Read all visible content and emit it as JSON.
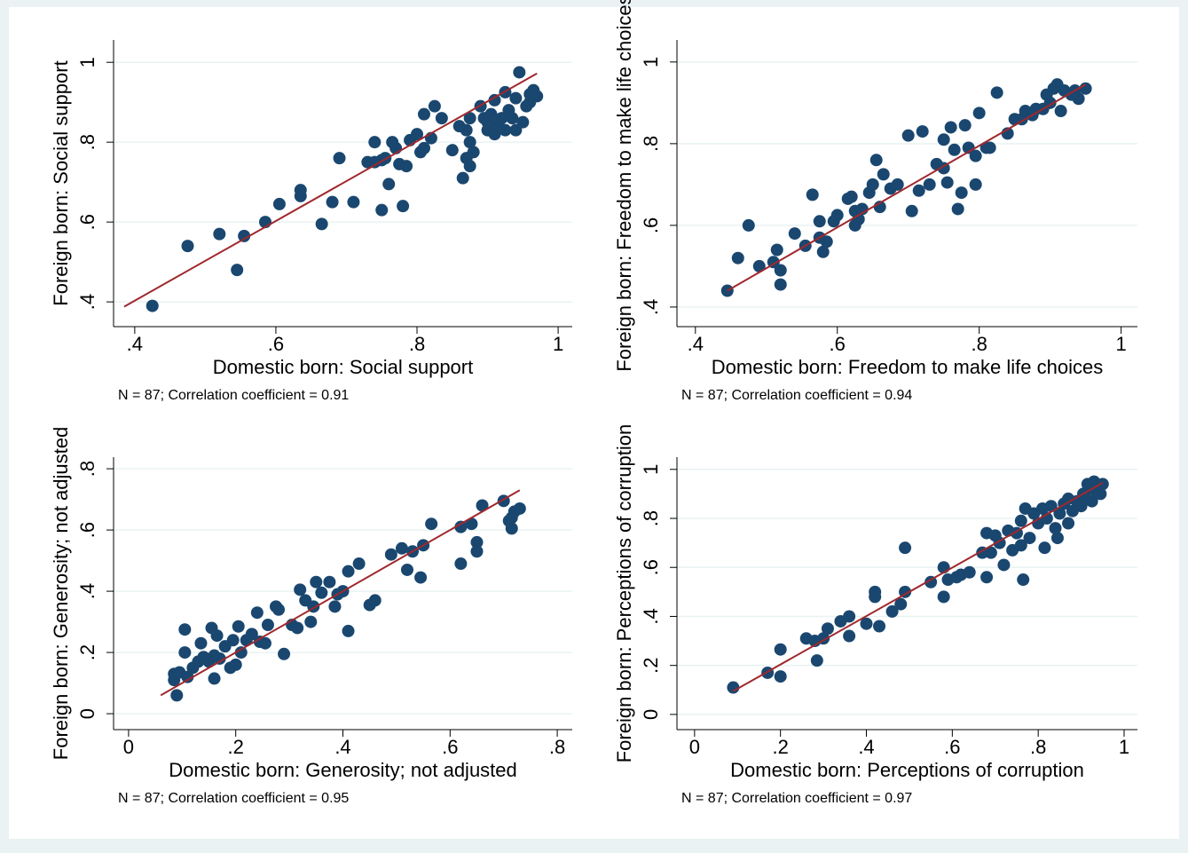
{
  "chart_data": [
    {
      "type": "scatter",
      "xlabel": "Domestic born: Social support",
      "ylabel": "Foreign born: Social support",
      "note": "N = 87; Correlation coefficient =  0.91",
      "color": "#1a476f",
      "grid": true,
      "xlim": [
        0.37,
        1.02
      ],
      "ylim": [
        0.338,
        1.056
      ],
      "xticks": [
        {
          "value": 0.4,
          "label": ".4"
        },
        {
          "value": 0.6,
          "label": ".6"
        },
        {
          "value": 0.8,
          "label": ".8"
        },
        1
      ],
      "yticks": [
        {
          "value": 0.4,
          "label": ".4"
        },
        {
          "value": 0.6,
          "label": ".6"
        },
        {
          "value": 0.8,
          "label": ".8"
        },
        1
      ],
      "x": [
        0.425,
        0.475,
        0.52,
        0.545,
        0.555,
        0.585,
        0.605,
        0.635,
        0.635,
        0.665,
        0.68,
        0.69,
        0.71,
        0.73,
        0.74,
        0.74,
        0.75,
        0.75,
        0.755,
        0.76,
        0.765,
        0.77,
        0.775,
        0.78,
        0.785,
        0.79,
        0.8,
        0.805,
        0.81,
        0.81,
        0.82,
        0.825,
        0.835,
        0.85,
        0.86,
        0.865,
        0.87,
        0.87,
        0.875,
        0.875,
        0.875,
        0.88,
        0.89,
        0.895,
        0.9,
        0.9,
        0.905,
        0.91,
        0.91,
        0.915,
        0.92,
        0.925,
        0.925,
        0.93,
        0.935,
        0.94,
        0.94,
        0.945,
        0.95,
        0.955,
        0.96,
        0.96,
        0.965,
        0.97
      ],
      "values": [
        0.39,
        0.54,
        0.57,
        0.48,
        0.565,
        0.6,
        0.645,
        0.68,
        0.665,
        0.595,
        0.65,
        0.76,
        0.65,
        0.75,
        0.8,
        0.75,
        0.755,
        0.63,
        0.76,
        0.695,
        0.8,
        0.785,
        0.745,
        0.64,
        0.74,
        0.805,
        0.82,
        0.775,
        0.87,
        0.785,
        0.81,
        0.89,
        0.86,
        0.78,
        0.84,
        0.71,
        0.76,
        0.83,
        0.86,
        0.8,
        0.74,
        0.775,
        0.89,
        0.86,
        0.83,
        0.85,
        0.87,
        0.82,
        0.905,
        0.845,
        0.86,
        0.925,
        0.83,
        0.88,
        0.86,
        0.91,
        0.83,
        0.975,
        0.85,
        0.89,
        0.92,
        0.9,
        0.93,
        0.915
      ],
      "fit_line": {
        "x": [
          0.385,
          0.97
        ],
        "values": [
          0.388,
          0.972
        ],
        "color": "#a0282d"
      }
    },
    {
      "type": "scatter",
      "xlabel": "Domestic born: Freedom to make life choices",
      "ylabel": "Foreign born: Freedom to make life choices",
      "note": "N = 87; Correlation coefficient =  0.94",
      "color": "#1a476f",
      "grid": true,
      "xlim": [
        0.374,
        1.023
      ],
      "ylim": [
        0.352,
        1.054
      ],
      "xticks": [
        {
          "value": 0.4,
          "label": ".4"
        },
        {
          "value": 0.6,
          "label": ".6"
        },
        {
          "value": 0.8,
          "label": ".8"
        },
        1
      ],
      "yticks": [
        {
          "value": 0.4,
          "label": ".4"
        },
        {
          "value": 0.6,
          "label": ".6"
        },
        {
          "value": 0.8,
          "label": ".8"
        },
        1
      ],
      "x": [
        0.445,
        0.46,
        0.475,
        0.49,
        0.51,
        0.515,
        0.52,
        0.52,
        0.54,
        0.555,
        0.565,
        0.575,
        0.575,
        0.58,
        0.585,
        0.595,
        0.6,
        0.615,
        0.62,
        0.625,
        0.625,
        0.63,
        0.635,
        0.645,
        0.65,
        0.655,
        0.66,
        0.665,
        0.675,
        0.685,
        0.7,
        0.705,
        0.715,
        0.72,
        0.73,
        0.74,
        0.75,
        0.75,
        0.755,
        0.76,
        0.765,
        0.77,
        0.775,
        0.78,
        0.785,
        0.795,
        0.795,
        0.8,
        0.81,
        0.815,
        0.825,
        0.84,
        0.85,
        0.86,
        0.865,
        0.875,
        0.88,
        0.89,
        0.895,
        0.9,
        0.905,
        0.91,
        0.915,
        0.92,
        0.93,
        0.935,
        0.94,
        0.95
      ],
      "values": [
        0.44,
        0.52,
        0.6,
        0.5,
        0.51,
        0.54,
        0.49,
        0.455,
        0.58,
        0.55,
        0.675,
        0.61,
        0.57,
        0.535,
        0.56,
        0.61,
        0.625,
        0.665,
        0.67,
        0.635,
        0.6,
        0.615,
        0.64,
        0.68,
        0.7,
        0.76,
        0.645,
        0.725,
        0.69,
        0.7,
        0.82,
        0.635,
        0.685,
        0.83,
        0.7,
        0.75,
        0.74,
        0.81,
        0.705,
        0.84,
        0.785,
        0.64,
        0.68,
        0.845,
        0.79,
        0.77,
        0.7,
        0.875,
        0.79,
        0.79,
        0.925,
        0.825,
        0.86,
        0.86,
        0.88,
        0.87,
        0.885,
        0.885,
        0.92,
        0.9,
        0.935,
        0.945,
        0.88,
        0.93,
        0.92,
        0.93,
        0.91,
        0.935
      ],
      "fit_line": {
        "x": [
          0.445,
          0.95
        ],
        "values": [
          0.44,
          0.945
        ],
        "color": "#a0282d"
      }
    },
    {
      "type": "scatter",
      "xlabel": "Domestic born: Generosity; not adjusted",
      "ylabel": "Foreign born: Generosity; not adjusted",
      "note": "N = 87; Correlation coefficient =  0.95",
      "color": "#1a476f",
      "grid": true,
      "xlim": [
        -0.028,
        0.828
      ],
      "ylim": [
        -0.052,
        0.838
      ],
      "xticks": [
        0,
        {
          "value": 0.2,
          "label": ".2"
        },
        {
          "value": 0.4,
          "label": ".4"
        },
        {
          "value": 0.6,
          "label": ".6"
        },
        {
          "value": 0.8,
          "label": ".8"
        }
      ],
      "yticks": [
        0,
        {
          "value": 0.2,
          "label": ".2"
        },
        {
          "value": 0.4,
          "label": ".4"
        },
        {
          "value": 0.6,
          "label": ".6"
        },
        {
          "value": 0.8,
          "label": ".8"
        }
      ],
      "x": [
        0.085,
        0.085,
        0.09,
        0.095,
        0.105,
        0.105,
        0.11,
        0.12,
        0.13,
        0.135,
        0.14,
        0.15,
        0.155,
        0.16,
        0.16,
        0.165,
        0.17,
        0.18,
        0.19,
        0.195,
        0.2,
        0.205,
        0.21,
        0.22,
        0.23,
        0.24,
        0.245,
        0.255,
        0.26,
        0.275,
        0.28,
        0.29,
        0.305,
        0.315,
        0.32,
        0.33,
        0.34,
        0.345,
        0.35,
        0.36,
        0.375,
        0.385,
        0.39,
        0.4,
        0.41,
        0.41,
        0.43,
        0.45,
        0.46,
        0.49,
        0.51,
        0.52,
        0.53,
        0.545,
        0.55,
        0.565,
        0.62,
        0.62,
        0.64,
        0.65,
        0.65,
        0.66,
        0.7,
        0.71,
        0.715,
        0.715,
        0.72,
        0.73
      ],
      "values": [
        0.11,
        0.13,
        0.06,
        0.135,
        0.275,
        0.2,
        0.12,
        0.15,
        0.17,
        0.23,
        0.185,
        0.17,
        0.28,
        0.19,
        0.115,
        0.255,
        0.18,
        0.22,
        0.15,
        0.24,
        0.16,
        0.285,
        0.2,
        0.24,
        0.26,
        0.33,
        0.235,
        0.23,
        0.29,
        0.35,
        0.34,
        0.195,
        0.29,
        0.28,
        0.405,
        0.37,
        0.3,
        0.35,
        0.43,
        0.395,
        0.43,
        0.35,
        0.39,
        0.4,
        0.27,
        0.465,
        0.49,
        0.355,
        0.37,
        0.52,
        0.54,
        0.47,
        0.53,
        0.445,
        0.55,
        0.62,
        0.49,
        0.61,
        0.62,
        0.56,
        0.53,
        0.68,
        0.695,
        0.63,
        0.64,
        0.605,
        0.66,
        0.67
      ],
      "fit_line": {
        "x": [
          0.06,
          0.73
        ],
        "values": [
          0.06,
          0.73
        ],
        "color": "#a0282d"
      }
    },
    {
      "type": "scatter",
      "xlabel": "Domestic born: Perceptions of corruption",
      "ylabel": "Foreign born: Perceptions of corruption",
      "note": "N = 87; Correlation coefficient =  0.97",
      "color": "#1a476f",
      "grid": true,
      "xlim": [
        -0.041,
        1.031
      ],
      "ylim": [
        -0.062,
        1.05
      ],
      "xticks": [
        0,
        {
          "value": 0.2,
          "label": ".2"
        },
        {
          "value": 0.4,
          "label": ".4"
        },
        {
          "value": 0.6,
          "label": ".6"
        },
        {
          "value": 0.8,
          "label": ".8"
        },
        1
      ],
      "yticks": [
        0,
        {
          "value": 0.2,
          "label": ".2"
        },
        {
          "value": 0.4,
          "label": ".4"
        },
        {
          "value": 0.6,
          "label": ".6"
        },
        {
          "value": 0.8,
          "label": ".8"
        },
        1
      ],
      "x": [
        0.09,
        0.17,
        0.2,
        0.2,
        0.26,
        0.28,
        0.285,
        0.3,
        0.31,
        0.34,
        0.36,
        0.36,
        0.4,
        0.42,
        0.42,
        0.43,
        0.46,
        0.48,
        0.49,
        0.49,
        0.55,
        0.58,
        0.58,
        0.59,
        0.61,
        0.62,
        0.64,
        0.67,
        0.68,
        0.68,
        0.69,
        0.7,
        0.71,
        0.72,
        0.73,
        0.74,
        0.75,
        0.76,
        0.76,
        0.765,
        0.77,
        0.78,
        0.79,
        0.8,
        0.81,
        0.815,
        0.82,
        0.83,
        0.84,
        0.845,
        0.85,
        0.86,
        0.87,
        0.87,
        0.88,
        0.89,
        0.9,
        0.905,
        0.91,
        0.915,
        0.92,
        0.925,
        0.93,
        0.935,
        0.94,
        0.945,
        0.95
      ],
      "values": [
        0.11,
        0.17,
        0.265,
        0.155,
        0.31,
        0.3,
        0.22,
        0.31,
        0.35,
        0.38,
        0.4,
        0.32,
        0.37,
        0.5,
        0.48,
        0.36,
        0.42,
        0.45,
        0.68,
        0.5,
        0.54,
        0.48,
        0.6,
        0.55,
        0.56,
        0.57,
        0.58,
        0.66,
        0.74,
        0.56,
        0.66,
        0.73,
        0.7,
        0.61,
        0.75,
        0.67,
        0.74,
        0.69,
        0.79,
        0.55,
        0.84,
        0.72,
        0.82,
        0.78,
        0.84,
        0.68,
        0.8,
        0.85,
        0.76,
        0.72,
        0.82,
        0.86,
        0.78,
        0.88,
        0.83,
        0.87,
        0.85,
        0.9,
        0.88,
        0.94,
        0.92,
        0.87,
        0.95,
        0.91,
        0.93,
        0.9,
        0.94
      ],
      "fit_line": {
        "x": [
          0.09,
          0.95
        ],
        "values": [
          0.095,
          0.945
        ],
        "color": "#a0282d"
      }
    }
  ]
}
